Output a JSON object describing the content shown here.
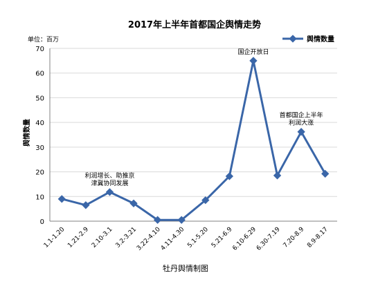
{
  "chart_data": {
    "type": "line",
    "title": "2017年上半年首都国企舆情走势",
    "unit_label": "单位：百万",
    "ylabel": "舆情数量",
    "xlabel": "",
    "ylim": [
      0,
      70
    ],
    "yticks": [
      0,
      10,
      20,
      30,
      40,
      50,
      60,
      70
    ],
    "grid": true,
    "legend_position": "top-right",
    "categories": [
      "1.1-1.20",
      "1.21-2.9",
      "2.10-3.1",
      "3.2-3.21",
      "3.22-4.10",
      "4.11-4.30",
      "5.1-5.20",
      "5.21-6.9",
      "6.10-6.29",
      "6.30-7.19",
      "7.20-8.9",
      "8.9-8.17"
    ],
    "series": [
      {
        "name": "舆情数量",
        "color": "#3a66a8",
        "values": [
          9,
          6.5,
          11.8,
          7.2,
          0.5,
          0.5,
          8.5,
          18.2,
          65,
          18.5,
          36.2,
          19.2
        ]
      }
    ],
    "annotations": [
      {
        "index": 2,
        "lines": [
          "利润增长、助推京",
          "津冀协同发展"
        ]
      },
      {
        "index": 8,
        "lines": [
          "国企开放日"
        ]
      },
      {
        "index": 10,
        "lines": [
          "首都国企上半年",
          "利润大涨"
        ]
      }
    ]
  },
  "caption": "牡丹舆情制图"
}
